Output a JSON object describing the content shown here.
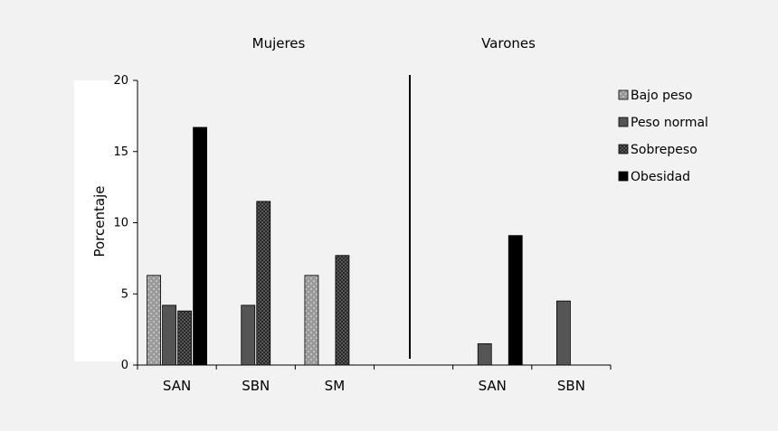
{
  "chart_data": {
    "type": "bar",
    "panel_titles": [
      "Mujeres",
      "Varones"
    ],
    "ylabel": "Porcentaje",
    "ylim": [
      0,
      20
    ],
    "yticks": [
      0,
      5,
      10,
      15,
      20
    ],
    "categories": [
      "SAN",
      "SBN",
      "SM",
      "",
      "SAN",
      "SBN"
    ],
    "series": [
      {
        "name": "Bajo peso",
        "values": [
          6.3,
          0,
          6.3,
          0,
          0,
          0
        ]
      },
      {
        "name": "Peso normal",
        "values": [
          4.2,
          4.2,
          0,
          0,
          1.5,
          4.5
        ]
      },
      {
        "name": "Sobrepeso",
        "values": [
          3.8,
          11.5,
          7.7,
          0,
          0,
          0
        ]
      },
      {
        "name": "Obesidad",
        "values": [
          16.7,
          0,
          0,
          0,
          9.1,
          0
        ]
      }
    ],
    "colors": {
      "bajo_peso": "#9a9a9a",
      "peso_normal": "#555555",
      "sobrepeso": "#2a2a2a",
      "obesidad": "#000000"
    },
    "legend_position": "right",
    "grid": false
  }
}
